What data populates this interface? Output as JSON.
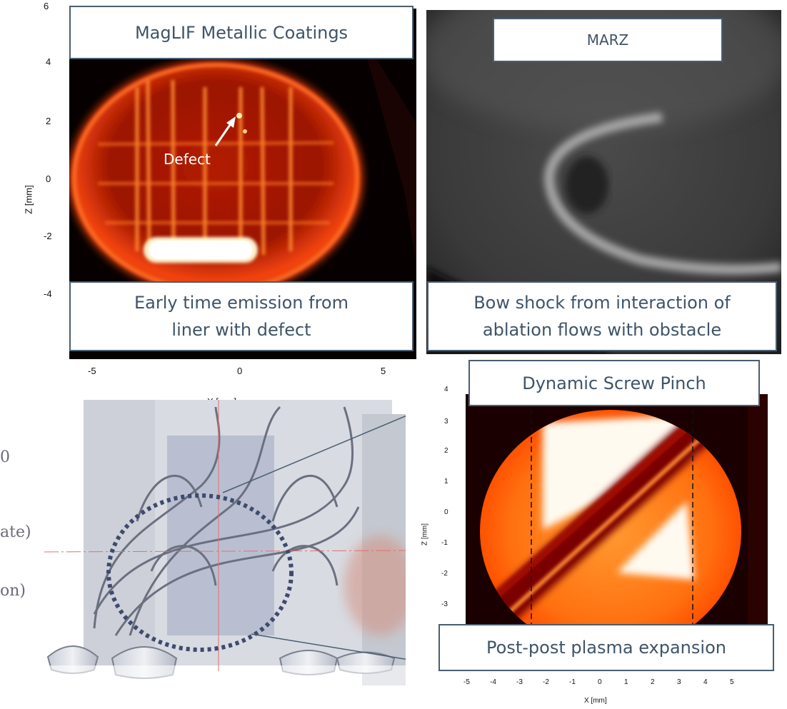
{
  "panels": {
    "maglif": {
      "title": "MagLIF Metallic Coatings",
      "caption_line1": "Early time emission from",
      "caption_line2": "liner with defect",
      "annotation": "Defect",
      "ylabel": "Z [mm]",
      "xlabel": "X [mm]",
      "y_ticks": [
        "6",
        "4",
        "2",
        "0",
        "-2",
        "-4"
      ],
      "x_ticks": [
        "-5",
        "0",
        "5"
      ]
    },
    "marz": {
      "title": "MARZ",
      "caption_line1": "Bow shock from interaction of",
      "caption_line2": "ablation flows with obstacle"
    },
    "screw_pinch": {
      "title": "Dynamic Screw Pinch",
      "caption": "Post-post plasma expansion",
      "ylabel": "Z [mm]",
      "xlabel": "X [mm]",
      "y_ticks": [
        "4",
        "3",
        "2",
        "1",
        "0",
        "-1",
        "-2",
        "-3"
      ],
      "x_ticks": [
        "-5",
        "-4",
        "-3",
        "-2",
        "-1",
        "0",
        "1",
        "2",
        "3",
        "4",
        "5"
      ]
    }
  },
  "left_text_fragments": [
    "0",
    "ate)",
    "on)"
  ],
  "colors": {
    "box_border": "#4a5e72",
    "box_text": "#3f5468",
    "emission_hot": "#fff3c8",
    "emission_mid": "#ff5a10",
    "emission_dark": "#3a0400"
  }
}
